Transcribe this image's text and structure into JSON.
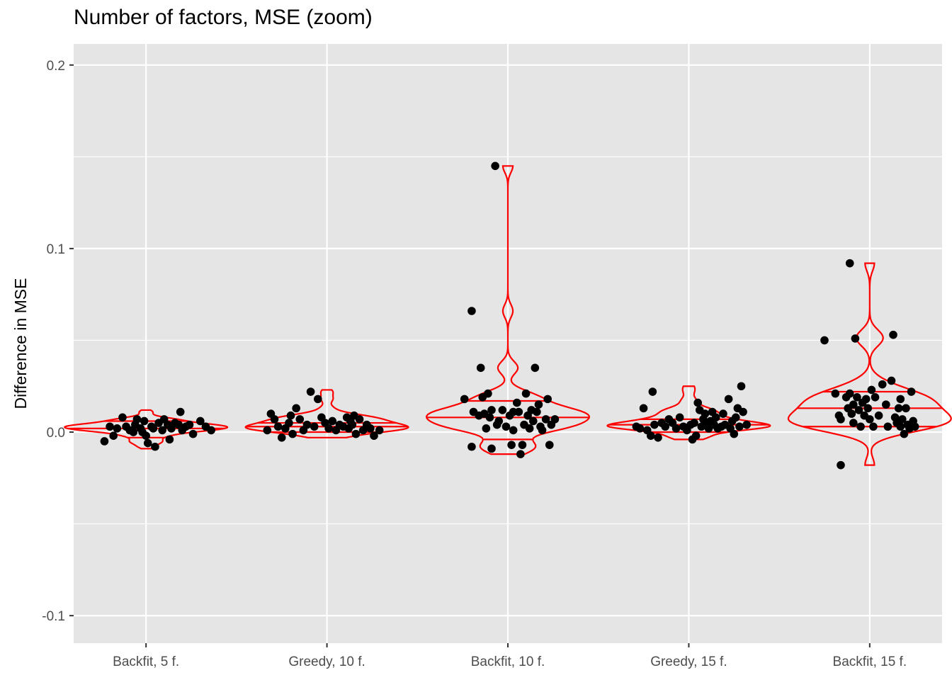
{
  "chart_data": {
    "type": "violin",
    "title": "Number of factors, MSE (zoom)",
    "xlabel": "",
    "ylabel": "Difference in MSE",
    "categories": [
      "Backfit, 5 f.",
      "Greedy, 10 f.",
      "Backfit, 10 f.",
      "Greedy, 15 f.",
      "Backfit, 15 f."
    ],
    "ylim": [
      -0.115,
      0.2115
    ],
    "yticks": [
      -0.1,
      0.0,
      0.1,
      0.2
    ],
    "ytick_labels": [
      "-0.1",
      "0.0",
      "0.1",
      "0.2"
    ],
    "grid": true,
    "legend": "none",
    "colors": {
      "panel": "#e5e5e5",
      "grid": "#ffffff",
      "violin": "#ff0000",
      "point": "#000000"
    },
    "series": [
      {
        "category": "Backfit, 5 f.",
        "violin_max": 0.012,
        "violin_min": -0.009,
        "quantiles": [
          -0.003,
          0.002,
          0.006
        ],
        "points": [
          {
            "dx": -0.23,
            "y": -0.005
          },
          {
            "dx": -0.2,
            "y": 0.003
          },
          {
            "dx": -0.18,
            "y": -0.002
          },
          {
            "dx": -0.16,
            "y": 0.002
          },
          {
            "dx": -0.13,
            "y": 0.008
          },
          {
            "dx": -0.11,
            "y": 0.003
          },
          {
            "dx": -0.09,
            "y": 0.001
          },
          {
            "dx": -0.07,
            "y": 0.0
          },
          {
            "dx": -0.05,
            "y": 0.007
          },
          {
            "dx": -0.03,
            "y": 0.002
          },
          {
            "dx": -0.01,
            "y": 0.006
          },
          {
            "dx": 0.01,
            "y": -0.006
          },
          {
            "dx": 0.03,
            "y": 0.003
          },
          {
            "dx": 0.05,
            "y": -0.008
          },
          {
            "dx": 0.07,
            "y": 0.005
          },
          {
            "dx": 0.09,
            "y": 0.001
          },
          {
            "dx": 0.1,
            "y": 0.007
          },
          {
            "dx": 0.12,
            "y": 0.004
          },
          {
            "dx": 0.14,
            "y": 0.002
          },
          {
            "dx": 0.16,
            "y": 0.005
          },
          {
            "dx": 0.18,
            "y": 0.004
          },
          {
            "dx": 0.2,
            "y": 0.001
          },
          {
            "dx": 0.22,
            "y": 0.003
          },
          {
            "dx": 0.24,
            "y": 0.004
          },
          {
            "dx": -0.02,
            "y": 0.0
          },
          {
            "dx": 0.04,
            "y": 0.002
          },
          {
            "dx": 0.13,
            "y": -0.004
          },
          {
            "dx": 0.19,
            "y": 0.011
          },
          {
            "dx": 0.26,
            "y": -0.001
          },
          {
            "dx": 0.3,
            "y": 0.006
          },
          {
            "dx": 0.33,
            "y": 0.003
          },
          {
            "dx": 0.36,
            "y": 0.001
          },
          {
            "dx": -0.06,
            "y": 0.004
          },
          {
            "dx": 0.0,
            "y": -0.002
          }
        ]
      },
      {
        "category": "Greedy, 10 f.",
        "violin_max": 0.023,
        "violin_min": -0.003,
        "quantiles": [
          0.0,
          0.003,
          0.005
        ],
        "points": [
          {
            "dx": -0.33,
            "y": 0.001
          },
          {
            "dx": -0.31,
            "y": 0.01
          },
          {
            "dx": -0.29,
            "y": 0.007
          },
          {
            "dx": -0.27,
            "y": 0.003
          },
          {
            "dx": -0.25,
            "y": -0.003
          },
          {
            "dx": -0.23,
            "y": 0.002
          },
          {
            "dx": -0.21,
            "y": 0.005
          },
          {
            "dx": -0.19,
            "y": -0.001
          },
          {
            "dx": -0.17,
            "y": 0.013
          },
          {
            "dx": -0.15,
            "y": 0.007
          },
          {
            "dx": -0.13,
            "y": 0.001
          },
          {
            "dx": -0.11,
            "y": 0.004
          },
          {
            "dx": -0.09,
            "y": 0.022
          },
          {
            "dx": -0.07,
            "y": 0.003
          },
          {
            "dx": -0.05,
            "y": 0.018
          },
          {
            "dx": -0.03,
            "y": 0.008
          },
          {
            "dx": -0.01,
            "y": 0.005
          },
          {
            "dx": 0.01,
            "y": 0.002
          },
          {
            "dx": 0.03,
            "y": 0.006
          },
          {
            "dx": 0.05,
            "y": 0.001
          },
          {
            "dx": 0.07,
            "y": 0.004
          },
          {
            "dx": 0.09,
            "y": 0.003
          },
          {
            "dx": 0.11,
            "y": 0.008
          },
          {
            "dx": 0.12,
            "y": 0.002
          },
          {
            "dx": 0.13,
            "y": 0.006
          },
          {
            "dx": 0.14,
            "y": 0.004
          },
          {
            "dx": 0.16,
            "y": -0.001
          },
          {
            "dx": 0.18,
            "y": 0.007
          },
          {
            "dx": 0.2,
            "y": 0.001
          },
          {
            "dx": 0.22,
            "y": 0.004
          },
          {
            "dx": 0.24,
            "y": 0.002
          },
          {
            "dx": 0.26,
            "y": -0.002
          },
          {
            "dx": 0.29,
            "y": 0.001
          },
          {
            "dx": -0.2,
            "y": 0.009
          },
          {
            "dx": 0.15,
            "y": 0.009
          }
        ]
      },
      {
        "category": "Backfit, 10 f.",
        "violin_max": 0.145,
        "violin_min": -0.012,
        "quantiles": [
          -0.004,
          0.008,
          0.017
        ],
        "points": [
          {
            "dx": -0.24,
            "y": 0.018
          },
          {
            "dx": -0.2,
            "y": -0.008
          },
          {
            "dx": -0.19,
            "y": 0.011
          },
          {
            "dx": -0.2,
            "y": 0.066
          },
          {
            "dx": -0.16,
            "y": 0.009
          },
          {
            "dx": -0.15,
            "y": 0.035
          },
          {
            "dx": -0.14,
            "y": 0.019
          },
          {
            "dx": -0.13,
            "y": 0.01
          },
          {
            "dx": -0.11,
            "y": 0.021
          },
          {
            "dx": -0.1,
            "y": 0.008
          },
          {
            "dx": -0.09,
            "y": 0.012
          },
          {
            "dx": -0.09,
            "y": -0.009
          },
          {
            "dx": -0.07,
            "y": 0.145
          },
          {
            "dx": -0.06,
            "y": 0.004
          },
          {
            "dx": -0.05,
            "y": 0.006
          },
          {
            "dx": -0.03,
            "y": 0.012
          },
          {
            "dx": -0.01,
            "y": 0.003
          },
          {
            "dx": 0.01,
            "y": 0.009
          },
          {
            "dx": 0.02,
            "y": -0.007
          },
          {
            "dx": 0.03,
            "y": 0.001
          },
          {
            "dx": 0.05,
            "y": 0.016
          },
          {
            "dx": 0.06,
            "y": 0.011
          },
          {
            "dx": 0.07,
            "y": -0.012
          },
          {
            "dx": 0.08,
            "y": -0.007
          },
          {
            "dx": 0.09,
            "y": 0.004
          },
          {
            "dx": 0.1,
            "y": 0.021
          },
          {
            "dx": 0.11,
            "y": 0.009
          },
          {
            "dx": 0.12,
            "y": 0.002
          },
          {
            "dx": 0.13,
            "y": 0.012
          },
          {
            "dx": 0.14,
            "y": 0.006
          },
          {
            "dx": 0.15,
            "y": 0.035
          },
          {
            "dx": 0.16,
            "y": 0.011
          },
          {
            "dx": 0.17,
            "y": 0.015
          },
          {
            "dx": 0.18,
            "y": 0.003
          },
          {
            "dx": 0.19,
            "y": 0.001
          },
          {
            "dx": 0.21,
            "y": 0.007
          },
          {
            "dx": 0.22,
            "y": 0.018
          },
          {
            "dx": 0.23,
            "y": -0.007
          },
          {
            "dx": 0.24,
            "y": 0.004
          },
          {
            "dx": 0.26,
            "y": 0.007
          },
          {
            "dx": -0.12,
            "y": 0.002
          },
          {
            "dx": 0.03,
            "y": 0.011
          }
        ]
      },
      {
        "category": "Greedy, 15 f.",
        "violin_max": 0.025,
        "violin_min": -0.004,
        "quantiles": [
          0.0,
          0.004,
          0.007
        ],
        "points": [
          {
            "dx": -0.29,
            "y": 0.003
          },
          {
            "dx": -0.27,
            "y": 0.002
          },
          {
            "dx": -0.25,
            "y": 0.013
          },
          {
            "dx": -0.23,
            "y": 0.001
          },
          {
            "dx": -0.21,
            "y": -0.002
          },
          {
            "dx": -0.2,
            "y": 0.022
          },
          {
            "dx": -0.19,
            "y": 0.004
          },
          {
            "dx": -0.17,
            "y": -0.003
          },
          {
            "dx": -0.15,
            "y": 0.005
          },
          {
            "dx": -0.13,
            "y": 0.003
          },
          {
            "dx": -0.11,
            "y": 0.007
          },
          {
            "dx": -0.09,
            "y": 0.005
          },
          {
            "dx": -0.07,
            "y": 0.002
          },
          {
            "dx": -0.05,
            "y": 0.008
          },
          {
            "dx": -0.03,
            "y": 0.003
          },
          {
            "dx": -0.01,
            "y": 0.001
          },
          {
            "dx": 0.01,
            "y": 0.004
          },
          {
            "dx": 0.02,
            "y": -0.004
          },
          {
            "dx": 0.03,
            "y": 0.005
          },
          {
            "dx": 0.04,
            "y": -0.002
          },
          {
            "dx": 0.05,
            "y": 0.016
          },
          {
            "dx": 0.06,
            "y": 0.012
          },
          {
            "dx": 0.07,
            "y": 0.003
          },
          {
            "dx": 0.08,
            "y": 0.007
          },
          {
            "dx": 0.09,
            "y": 0.01
          },
          {
            "dx": 0.1,
            "y": 0.005
          },
          {
            "dx": 0.11,
            "y": 0.002
          },
          {
            "dx": 0.12,
            "y": 0.006
          },
          {
            "dx": 0.13,
            "y": 0.011
          },
          {
            "dx": 0.14,
            "y": 0.004
          },
          {
            "dx": 0.15,
            "y": 0.008
          },
          {
            "dx": 0.16,
            "y": 0.002
          },
          {
            "dx": 0.18,
            "y": 0.003
          },
          {
            "dx": 0.19,
            "y": 0.01
          },
          {
            "dx": 0.2,
            "y": 0.004
          },
          {
            "dx": 0.22,
            "y": 0.018
          },
          {
            "dx": 0.23,
            "y": 0.002
          },
          {
            "dx": 0.24,
            "y": 0.006
          },
          {
            "dx": 0.25,
            "y": -0.001
          },
          {
            "dx": 0.26,
            "y": 0.008
          },
          {
            "dx": 0.27,
            "y": 0.013
          },
          {
            "dx": 0.28,
            "y": 0.003
          },
          {
            "dx": 0.29,
            "y": 0.025
          },
          {
            "dx": 0.3,
            "y": 0.011
          },
          {
            "dx": 0.32,
            "y": 0.004
          }
        ]
      },
      {
        "category": "Backfit, 15 f.",
        "violin_max": 0.092,
        "violin_min": -0.018,
        "quantiles": [
          0.003,
          0.013,
          0.022
        ],
        "points": [
          {
            "dx": -0.25,
            "y": 0.05
          },
          {
            "dx": -0.19,
            "y": 0.021
          },
          {
            "dx": -0.17,
            "y": 0.009
          },
          {
            "dx": -0.16,
            "y": 0.007
          },
          {
            "dx": -0.16,
            "y": -0.018
          },
          {
            "dx": -0.13,
            "y": 0.019
          },
          {
            "dx": -0.12,
            "y": 0.013
          },
          {
            "dx": -0.11,
            "y": 0.021
          },
          {
            "dx": -0.11,
            "y": 0.092
          },
          {
            "dx": -0.1,
            "y": 0.01
          },
          {
            "dx": -0.09,
            "y": 0.015
          },
          {
            "dx": -0.09,
            "y": 0.005
          },
          {
            "dx": -0.08,
            "y": 0.051
          },
          {
            "dx": -0.07,
            "y": 0.019
          },
          {
            "dx": -0.06,
            "y": 0.012
          },
          {
            "dx": -0.05,
            "y": 0.003
          },
          {
            "dx": -0.04,
            "y": 0.016
          },
          {
            "dx": -0.03,
            "y": 0.009
          },
          {
            "dx": -0.02,
            "y": 0.018
          },
          {
            "dx": -0.01,
            "y": 0.013
          },
          {
            "dx": 0.0,
            "y": 0.007
          },
          {
            "dx": 0.01,
            "y": 0.023
          },
          {
            "dx": 0.02,
            "y": 0.003
          },
          {
            "dx": 0.03,
            "y": 0.019
          },
          {
            "dx": 0.05,
            "y": 0.009
          },
          {
            "dx": 0.07,
            "y": 0.026
          },
          {
            "dx": 0.09,
            "y": 0.015
          },
          {
            "dx": 0.1,
            "y": 0.003
          },
          {
            "dx": 0.12,
            "y": 0.028
          },
          {
            "dx": 0.13,
            "y": 0.053
          },
          {
            "dx": 0.14,
            "y": 0.008
          },
          {
            "dx": 0.15,
            "y": 0.005
          },
          {
            "dx": 0.16,
            "y": 0.013
          },
          {
            "dx": 0.17,
            "y": 0.018
          },
          {
            "dx": 0.17,
            "y": 0.003
          },
          {
            "dx": 0.18,
            "y": 0.007
          },
          {
            "dx": 0.19,
            "y": -0.001
          },
          {
            "dx": 0.2,
            "y": 0.013
          },
          {
            "dx": 0.21,
            "y": 0.004
          },
          {
            "dx": 0.22,
            "y": 0.002
          },
          {
            "dx": 0.23,
            "y": 0.022
          },
          {
            "dx": 0.24,
            "y": 0.006
          },
          {
            "dx": 0.25,
            "y": 0.003
          }
        ]
      }
    ]
  }
}
